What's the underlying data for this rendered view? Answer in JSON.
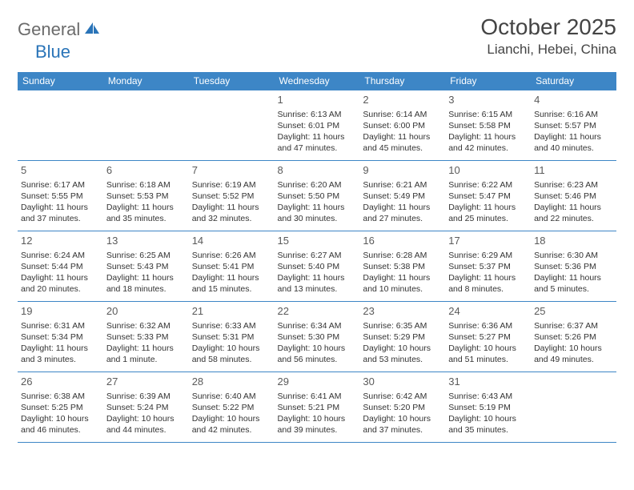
{
  "logo": {
    "part1": "General",
    "part2": "Blue"
  },
  "title": "October 2025",
  "location": "Lianchi, Hebei, China",
  "colors": {
    "header_bg": "#3d86c6",
    "header_text": "#ffffff",
    "border": "#3d86c6",
    "logo_gray": "#6b6b6b",
    "logo_blue": "#2a74b8"
  },
  "weekdays": [
    "Sunday",
    "Monday",
    "Tuesday",
    "Wednesday",
    "Thursday",
    "Friday",
    "Saturday"
  ],
  "first_weekday_index": 3,
  "days": [
    {
      "n": 1,
      "sunrise": "6:13 AM",
      "sunset": "6:01 PM",
      "daylight": "11 hours and 47 minutes."
    },
    {
      "n": 2,
      "sunrise": "6:14 AM",
      "sunset": "6:00 PM",
      "daylight": "11 hours and 45 minutes."
    },
    {
      "n": 3,
      "sunrise": "6:15 AM",
      "sunset": "5:58 PM",
      "daylight": "11 hours and 42 minutes."
    },
    {
      "n": 4,
      "sunrise": "6:16 AM",
      "sunset": "5:57 PM",
      "daylight": "11 hours and 40 minutes."
    },
    {
      "n": 5,
      "sunrise": "6:17 AM",
      "sunset": "5:55 PM",
      "daylight": "11 hours and 37 minutes."
    },
    {
      "n": 6,
      "sunrise": "6:18 AM",
      "sunset": "5:53 PM",
      "daylight": "11 hours and 35 minutes."
    },
    {
      "n": 7,
      "sunrise": "6:19 AM",
      "sunset": "5:52 PM",
      "daylight": "11 hours and 32 minutes."
    },
    {
      "n": 8,
      "sunrise": "6:20 AM",
      "sunset": "5:50 PM",
      "daylight": "11 hours and 30 minutes."
    },
    {
      "n": 9,
      "sunrise": "6:21 AM",
      "sunset": "5:49 PM",
      "daylight": "11 hours and 27 minutes."
    },
    {
      "n": 10,
      "sunrise": "6:22 AM",
      "sunset": "5:47 PM",
      "daylight": "11 hours and 25 minutes."
    },
    {
      "n": 11,
      "sunrise": "6:23 AM",
      "sunset": "5:46 PM",
      "daylight": "11 hours and 22 minutes."
    },
    {
      "n": 12,
      "sunrise": "6:24 AM",
      "sunset": "5:44 PM",
      "daylight": "11 hours and 20 minutes."
    },
    {
      "n": 13,
      "sunrise": "6:25 AM",
      "sunset": "5:43 PM",
      "daylight": "11 hours and 18 minutes."
    },
    {
      "n": 14,
      "sunrise": "6:26 AM",
      "sunset": "5:41 PM",
      "daylight": "11 hours and 15 minutes."
    },
    {
      "n": 15,
      "sunrise": "6:27 AM",
      "sunset": "5:40 PM",
      "daylight": "11 hours and 13 minutes."
    },
    {
      "n": 16,
      "sunrise": "6:28 AM",
      "sunset": "5:38 PM",
      "daylight": "11 hours and 10 minutes."
    },
    {
      "n": 17,
      "sunrise": "6:29 AM",
      "sunset": "5:37 PM",
      "daylight": "11 hours and 8 minutes."
    },
    {
      "n": 18,
      "sunrise": "6:30 AM",
      "sunset": "5:36 PM",
      "daylight": "11 hours and 5 minutes."
    },
    {
      "n": 19,
      "sunrise": "6:31 AM",
      "sunset": "5:34 PM",
      "daylight": "11 hours and 3 minutes."
    },
    {
      "n": 20,
      "sunrise": "6:32 AM",
      "sunset": "5:33 PM",
      "daylight": "11 hours and 1 minute."
    },
    {
      "n": 21,
      "sunrise": "6:33 AM",
      "sunset": "5:31 PM",
      "daylight": "10 hours and 58 minutes."
    },
    {
      "n": 22,
      "sunrise": "6:34 AM",
      "sunset": "5:30 PM",
      "daylight": "10 hours and 56 minutes."
    },
    {
      "n": 23,
      "sunrise": "6:35 AM",
      "sunset": "5:29 PM",
      "daylight": "10 hours and 53 minutes."
    },
    {
      "n": 24,
      "sunrise": "6:36 AM",
      "sunset": "5:27 PM",
      "daylight": "10 hours and 51 minutes."
    },
    {
      "n": 25,
      "sunrise": "6:37 AM",
      "sunset": "5:26 PM",
      "daylight": "10 hours and 49 minutes."
    },
    {
      "n": 26,
      "sunrise": "6:38 AM",
      "sunset": "5:25 PM",
      "daylight": "10 hours and 46 minutes."
    },
    {
      "n": 27,
      "sunrise": "6:39 AM",
      "sunset": "5:24 PM",
      "daylight": "10 hours and 44 minutes."
    },
    {
      "n": 28,
      "sunrise": "6:40 AM",
      "sunset": "5:22 PM",
      "daylight": "10 hours and 42 minutes."
    },
    {
      "n": 29,
      "sunrise": "6:41 AM",
      "sunset": "5:21 PM",
      "daylight": "10 hours and 39 minutes."
    },
    {
      "n": 30,
      "sunrise": "6:42 AM",
      "sunset": "5:20 PM",
      "daylight": "10 hours and 37 minutes."
    },
    {
      "n": 31,
      "sunrise": "6:43 AM",
      "sunset": "5:19 PM",
      "daylight": "10 hours and 35 minutes."
    }
  ],
  "labels": {
    "sunrise": "Sunrise:",
    "sunset": "Sunset:",
    "daylight": "Daylight:"
  }
}
